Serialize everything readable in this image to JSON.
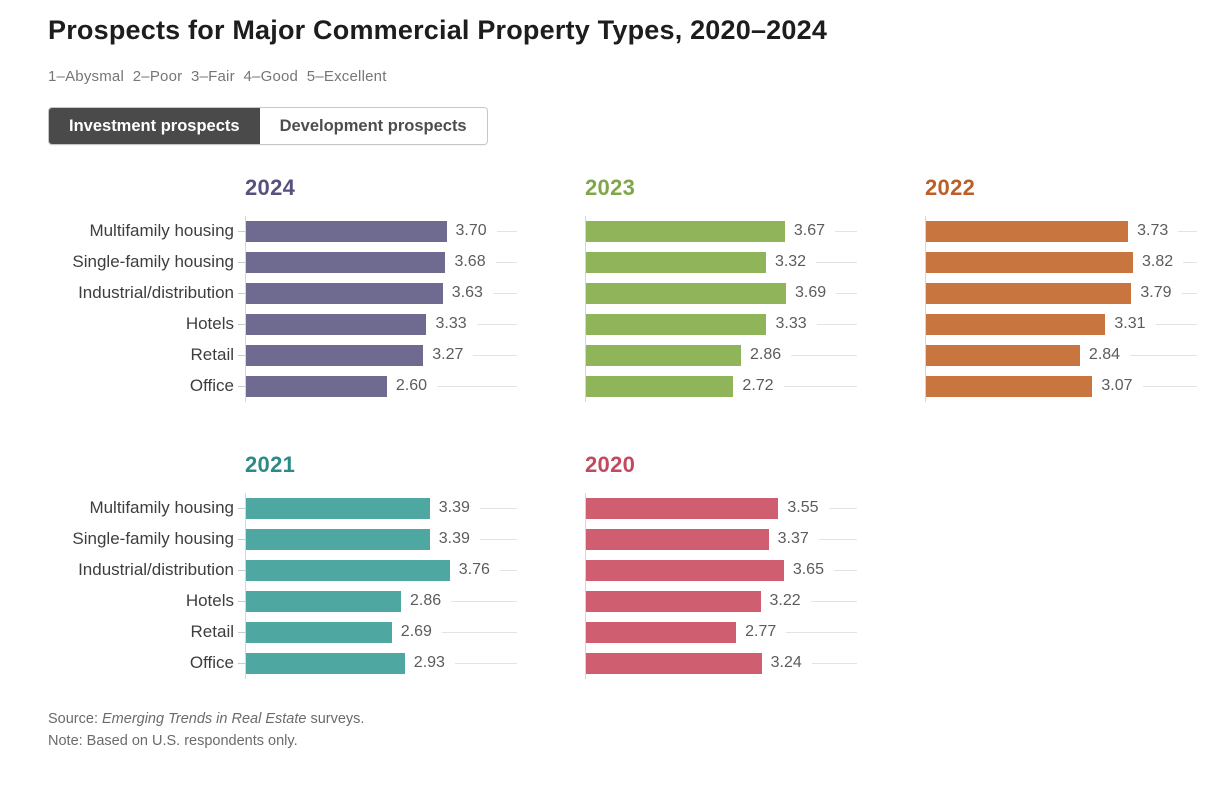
{
  "header": {
    "title": "Prospects for Major Commercial Property Types, 2020–2024",
    "scale_legend": "1–Abysmal  2–Poor  3–Fair  4–Good  5–Excellent"
  },
  "toggle": {
    "investment_label": "Investment prospects",
    "development_label": "Development prospects",
    "active": "Investment prospects",
    "active_bg": "#4a4a4a"
  },
  "footer": {
    "source_prefix": "Source: ",
    "source_italic": "Emerging Trends in Real Estate",
    "source_suffix": " surveys.",
    "note": "Note: Based on U.S. respondents only."
  },
  "chart_data": {
    "type": "bar",
    "layout": "small-multiples",
    "orientation": "horizontal",
    "xlim": [
      0,
      5
    ],
    "grid": "row-leader-lines",
    "value_labels": true,
    "categories": [
      "Multifamily housing",
      "Single-family housing",
      "Industrial/distribution",
      "Hotels",
      "Retail",
      "Office"
    ],
    "charts": [
      {
        "title": "2024",
        "color": "#6f6b90",
        "title_color": "#56527c",
        "show_category_labels": true,
        "values": [
          3.7,
          3.68,
          3.63,
          3.33,
          3.27,
          2.6
        ]
      },
      {
        "title": "2023",
        "color": "#8fb459",
        "title_color": "#7fa74a",
        "show_category_labels": false,
        "values": [
          3.67,
          3.32,
          3.69,
          3.33,
          2.86,
          2.72
        ]
      },
      {
        "title": "2022",
        "color": "#c97540",
        "title_color": "#bc5e28",
        "show_category_labels": false,
        "values": [
          3.73,
          3.82,
          3.79,
          3.31,
          2.84,
          3.07
        ]
      },
      {
        "title": "2021",
        "color": "#4fa7a1",
        "title_color": "#2d8b87",
        "show_category_labels": true,
        "values": [
          3.39,
          3.39,
          3.76,
          2.86,
          2.69,
          2.93
        ]
      },
      {
        "title": "2020",
        "color": "#cf5e70",
        "title_color": "#c24a60",
        "show_category_labels": false,
        "values": [
          3.55,
          3.37,
          3.65,
          3.22,
          2.77,
          3.24
        ]
      }
    ]
  }
}
